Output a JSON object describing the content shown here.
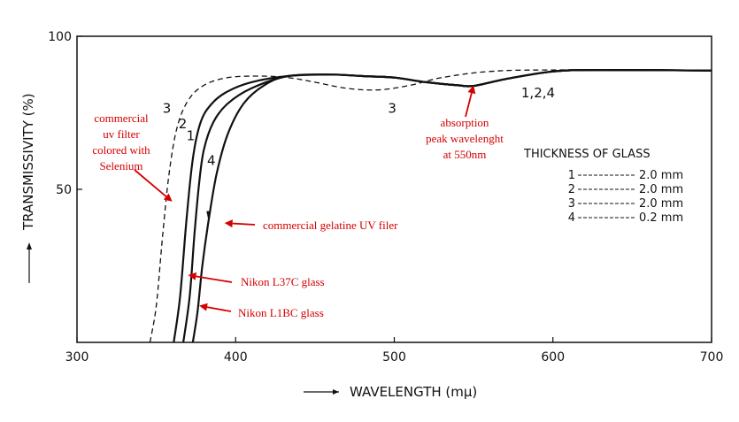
{
  "colors": {
    "ink": "#111111",
    "annotation": "#d40000"
  },
  "chart_data": {
    "type": "line",
    "title": "",
    "xlabel": "WAVELENGTH (mμ)",
    "ylabel": "TRANSMISSIVITY (%)",
    "xlim": [
      300,
      700
    ],
    "ylim": [
      0,
      100
    ],
    "x_ticks": [
      "300",
      "400",
      "500",
      "600",
      "700"
    ],
    "y_ticks": [
      "50",
      "100"
    ],
    "grid": false,
    "series": [
      {
        "name": "1",
        "style": "solid",
        "points": [
          [
            361,
            0
          ],
          [
            365,
            15
          ],
          [
            369,
            40
          ],
          [
            373,
            60
          ],
          [
            378,
            72
          ],
          [
            385,
            78
          ],
          [
            395,
            82
          ],
          [
            410,
            85
          ],
          [
            433,
            87
          ],
          [
            460,
            87.5
          ],
          [
            480,
            87
          ],
          [
            500,
            86.5
          ],
          [
            520,
            85
          ],
          [
            540,
            84
          ],
          [
            550,
            83.8
          ],
          [
            570,
            86
          ],
          [
            600,
            88.5
          ],
          [
            630,
            89
          ],
          [
            700,
            88.8
          ]
        ]
      },
      {
        "name": "2",
        "style": "solid",
        "points": [
          [
            367,
            0
          ],
          [
            371,
            15
          ],
          [
            374,
            35
          ],
          [
            377,
            52
          ],
          [
            380,
            63
          ],
          [
            386,
            72
          ],
          [
            395,
            78
          ],
          [
            410,
            83
          ],
          [
            433,
            87
          ],
          [
            460,
            87.5
          ],
          [
            480,
            87
          ],
          [
            500,
            86.5
          ],
          [
            520,
            85
          ],
          [
            540,
            84
          ],
          [
            550,
            83.8
          ],
          [
            570,
            86
          ],
          [
            600,
            88.5
          ],
          [
            630,
            89
          ],
          [
            700,
            88.8
          ]
        ]
      },
      {
        "name": "3",
        "style": "dashed",
        "points": [
          [
            346,
            0
          ],
          [
            350,
            12
          ],
          [
            354,
            35
          ],
          [
            358,
            55
          ],
          [
            363,
            70
          ],
          [
            370,
            79
          ],
          [
            380,
            84
          ],
          [
            395,
            86.5
          ],
          [
            415,
            87
          ],
          [
            433,
            86.5
          ],
          [
            450,
            85
          ],
          [
            470,
            83
          ],
          [
            490,
            82.5
          ],
          [
            510,
            84
          ],
          [
            530,
            86.5
          ],
          [
            560,
            88.5
          ],
          [
            600,
            89
          ],
          [
            700,
            88.8
          ]
        ]
      },
      {
        "name": "4",
        "style": "solid",
        "points": [
          [
            373,
            0
          ],
          [
            376,
            10
          ],
          [
            379,
            25
          ],
          [
            383,
            40
          ],
          [
            388,
            55
          ],
          [
            395,
            68
          ],
          [
            405,
            78
          ],
          [
            418,
            84
          ],
          [
            433,
            87
          ],
          [
            460,
            87.5
          ],
          [
            480,
            87
          ],
          [
            500,
            86.5
          ],
          [
            520,
            85
          ],
          [
            540,
            84
          ],
          [
            550,
            83.8
          ],
          [
            570,
            86
          ],
          [
            600,
            88.5
          ],
          [
            630,
            89
          ],
          [
            700,
            88.8
          ]
        ]
      }
    ],
    "curve_labels": [
      {
        "text": "3",
        "x": 354,
        "y": 75
      },
      {
        "text": "2",
        "x": 364,
        "y": 70
      },
      {
        "text": "1",
        "x": 369,
        "y": 66
      },
      {
        "text": "4",
        "x": 382,
        "y": 58
      },
      {
        "text": "3",
        "x": 496,
        "y": 75
      },
      {
        "text": "1,2,4",
        "x": 580,
        "y": 80
      }
    ],
    "legend": {
      "title": "THICKNESS OF GLASS",
      "placement": "right",
      "entries": [
        {
          "label": "1",
          "value": "2.0 mm"
        },
        {
          "label": "2",
          "value": "2.0 mm"
        },
        {
          "label": "3",
          "value": "2.0 mm"
        },
        {
          "label": "4",
          "value": "0.2 mm"
        }
      ]
    },
    "annotations": [
      {
        "lines": [
          "commercial",
          "uv filter",
          "colored with",
          "Selenium"
        ],
        "points_to": [
          360,
          46
        ]
      },
      {
        "lines": [
          "absorption",
          "peak wavelenght",
          "at 550nm"
        ],
        "points_to": [
          550,
          84
        ]
      },
      {
        "lines": [
          "commercial gelatine UV filer"
        ],
        "points_to": [
          393,
          39
        ]
      },
      {
        "lines": [
          "Nikon L37C glass"
        ],
        "points_to": [
          370,
          22
        ]
      },
      {
        "lines": [
          "Nikon L1BC glass"
        ],
        "points_to": [
          377,
          12
        ]
      }
    ]
  }
}
